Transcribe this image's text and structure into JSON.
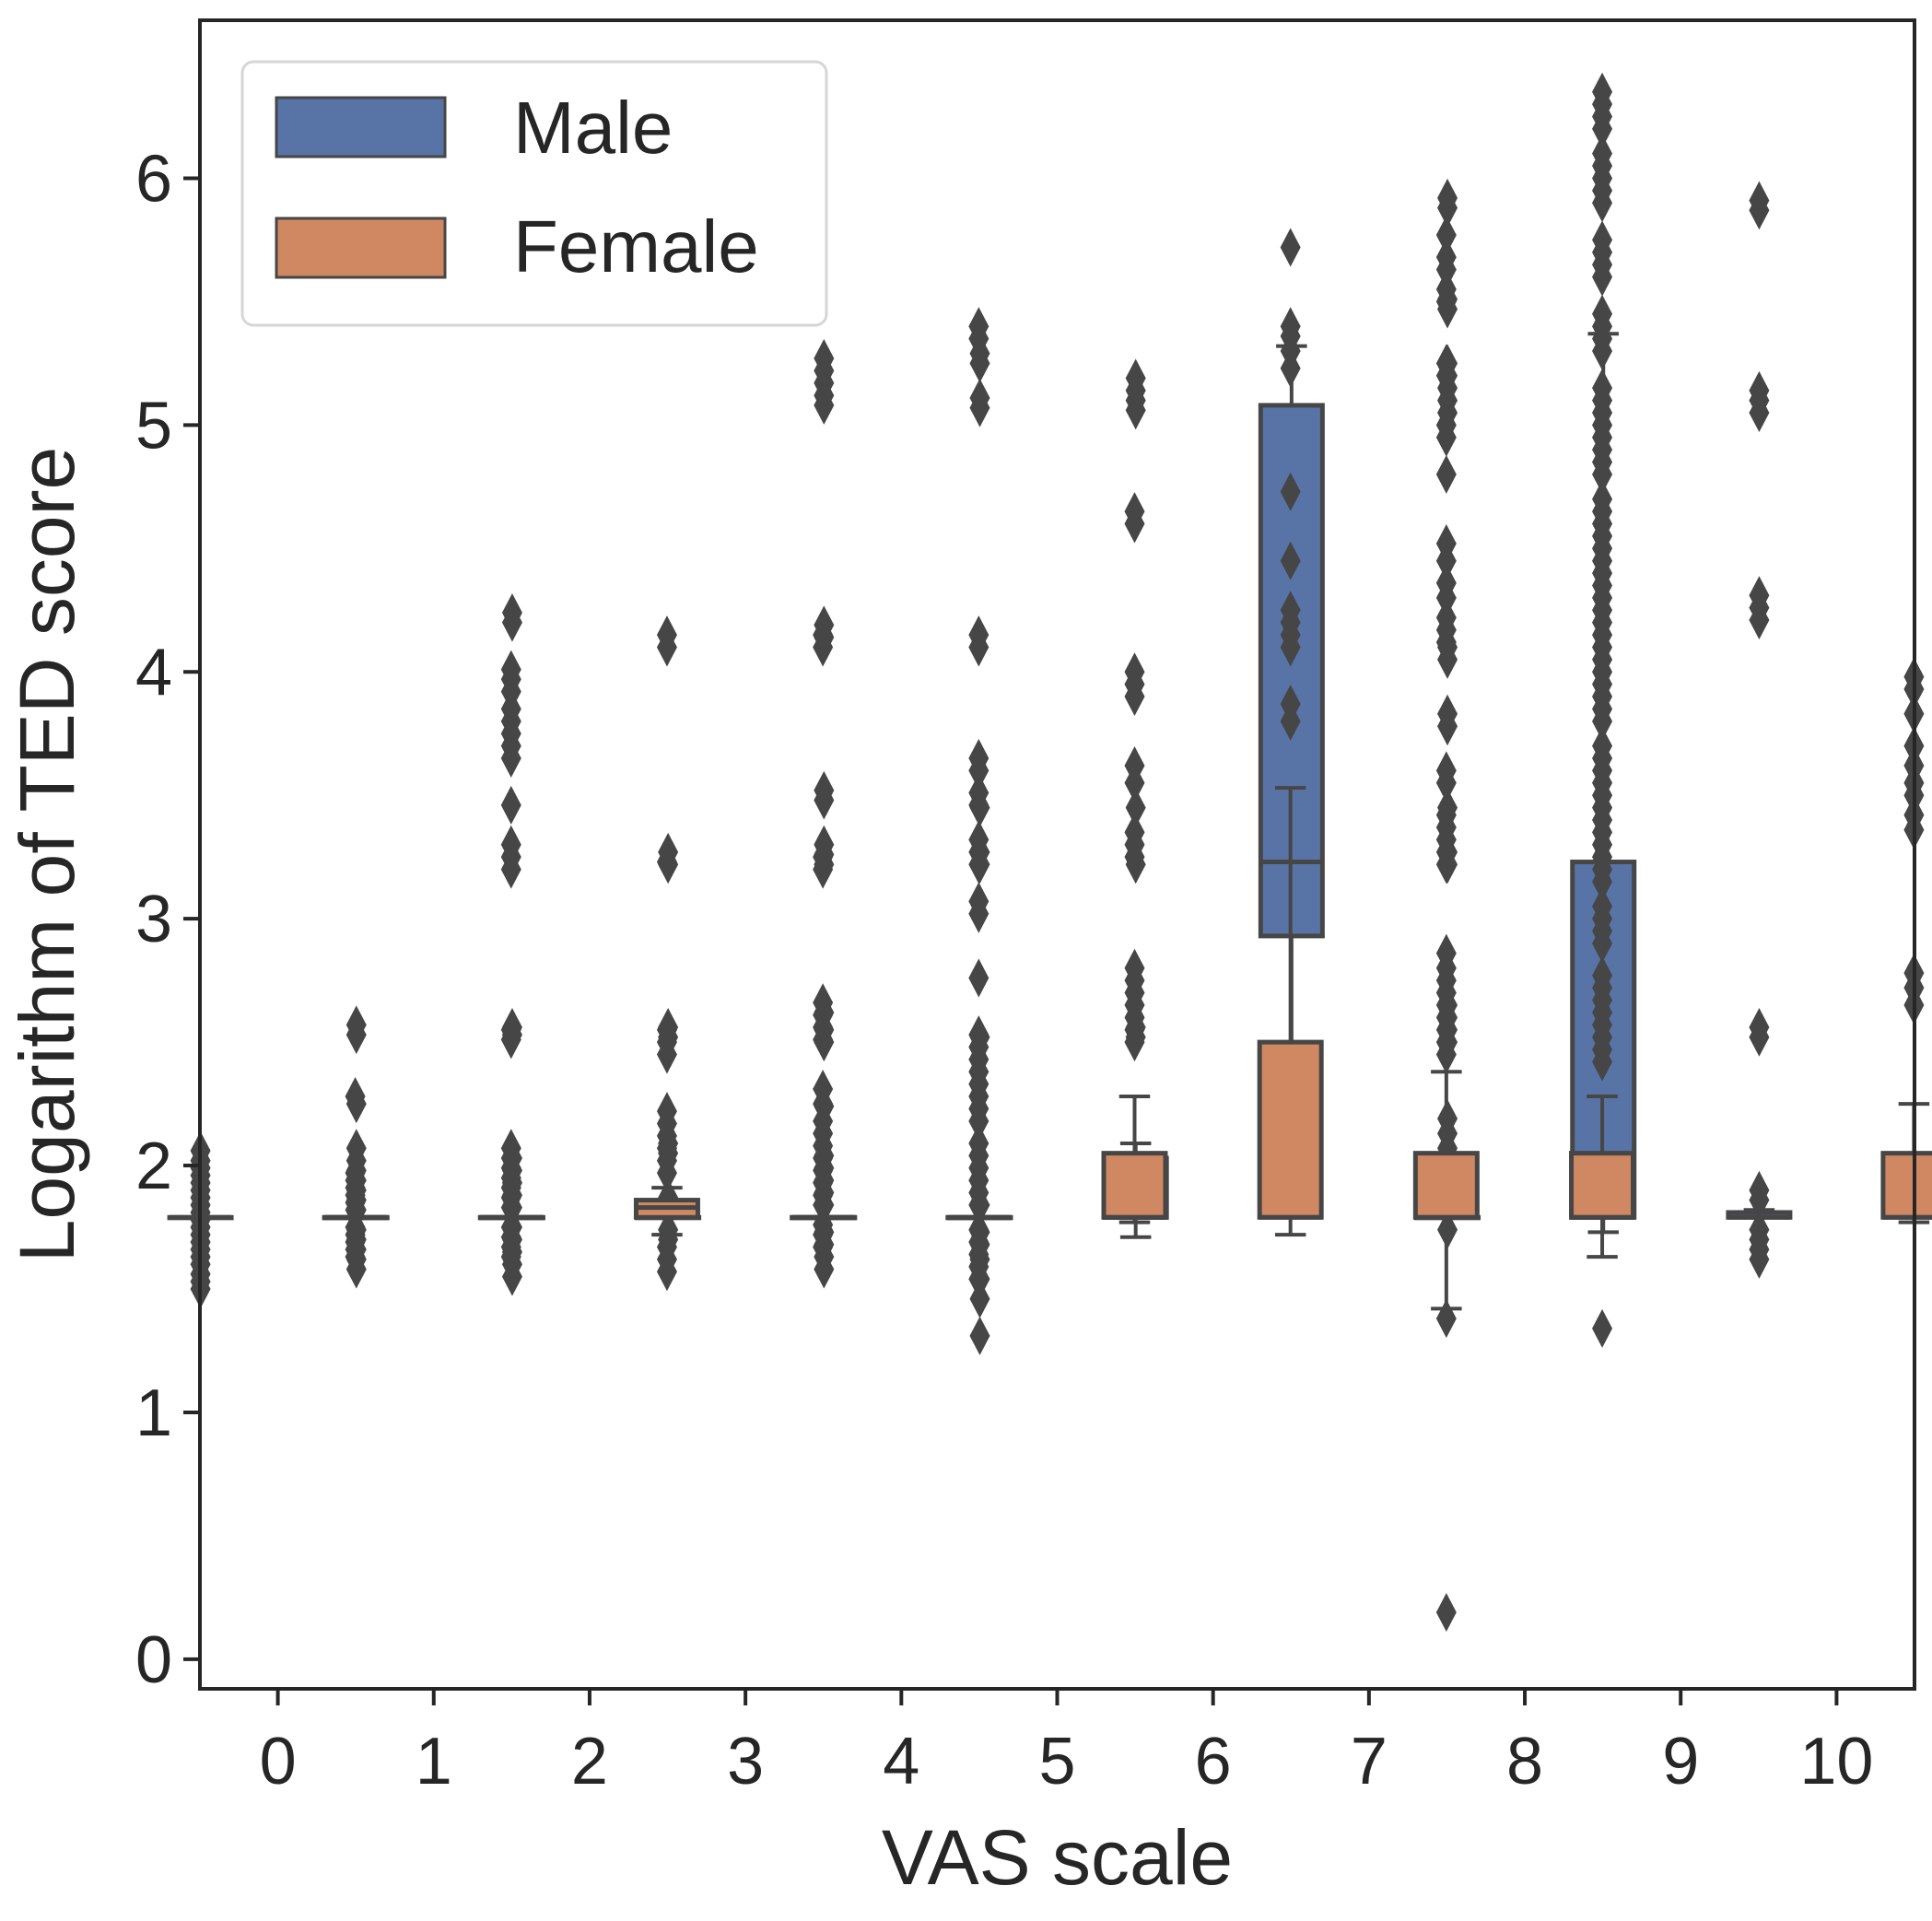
{
  "chart_data": {
    "type": "boxplot",
    "xlabel": "VAS scale",
    "ylabel": "Logarithm of TED score",
    "categories": [
      "0",
      "1",
      "2",
      "3",
      "4",
      "5",
      "6",
      "7",
      "8",
      "9",
      "10"
    ],
    "y_ticks": [
      "0",
      "1",
      "2",
      "3",
      "4",
      "5",
      "6"
    ],
    "ylim": [
      -0.12,
      6.64
    ],
    "legend": {
      "position": "top-left",
      "entries": [
        "Male",
        "Female"
      ]
    },
    "colors": {
      "Male": "#5874a6",
      "Female": "#cf8862",
      "edge": "#464646",
      "axis": "#262626"
    },
    "series": [
      {
        "name": "Male",
        "boxes": [
          {
            "q1": 1.79,
            "median": 1.79,
            "q3": 1.79,
            "wlo": 1.79,
            "whi": 1.79,
            "fliers": [
              1.5,
              1.53,
              1.56,
              1.6,
              1.63,
              1.66,
              1.69,
              1.72,
              1.75,
              1.78,
              1.81,
              1.84,
              1.87,
              1.9,
              1.93,
              1.96,
              1.99,
              2.02,
              2.06
            ]
          },
          {
            "q1": 1.79,
            "median": 1.79,
            "q3": 1.79,
            "wlo": 1.79,
            "whi": 1.79,
            "fliers": [
              1.58,
              1.62,
              1.66,
              1.7,
              1.74,
              1.82,
              1.86,
              1.9,
              1.94,
              1.98,
              2.02,
              2.07,
              2.25,
              2.53,
              2.57
            ]
          },
          {
            "q1": 1.79,
            "median": 1.79,
            "q3": 1.79,
            "wlo": 1.79,
            "whi": 1.79,
            "fliers": [
              1.55,
              1.6,
              1.65,
              1.7,
              1.75,
              1.83,
              1.88,
              1.93,
              1.98,
              2.03,
              2.53,
              2.56,
              4.2,
              4.24
            ]
          },
          {
            "q1": 1.79,
            "median": 1.79,
            "q3": 1.79,
            "wlo": 1.79,
            "whi": 1.79,
            "fliers": [
              1.7,
              1.74,
              1.84,
              1.87,
              2.05,
              2.09,
              2.52,
              2.56,
              3.22,
              3.27
            ]
          },
          {
            "q1": 1.79,
            "median": 1.79,
            "q3": 1.79,
            "wlo": 1.79,
            "whi": 1.79,
            "fliers": [
              1.58,
              1.63,
              1.68,
              1.73,
              1.84,
              1.89,
              1.94,
              1.99,
              2.04,
              2.24,
              2.5,
              2.55,
              2.62,
              3.22,
              3.26,
              3.3,
              3.48,
              3.52,
              4.14,
              4.19,
              5.08,
              5.12,
              5.17,
              5.22,
              5.27
            ]
          },
          {
            "q1": 1.79,
            "median": 1.79,
            "q3": 1.79,
            "wlo": 1.79,
            "whi": 1.79,
            "fliers": [
              1.31,
              1.46,
              1.54,
              1.62,
              1.68,
              1.73,
              1.84,
              2.52,
              3.22,
              3.27,
              3.45,
              5.07,
              5.11,
              5.25,
              5.29
            ]
          },
          {
            "q1": 1.79,
            "median": 1.79,
            "q3": 2.03,
            "wlo": 1.71,
            "whi": 2.09,
            "fliers": [
              2.52,
              2.56,
              3.22,
              3.45,
              5.06,
              5.1,
              5.14,
              5.19
            ]
          },
          {
            "q1": 2.93,
            "median": 3.23,
            "q3": 5.08,
            "wlo": 2.5,
            "whi": 5.32,
            "fliers": []
          },
          {
            "q1": 1.79,
            "median": 1.79,
            "q3": 1.79,
            "wlo": 1.79,
            "whi": 1.79,
            "fliers": [
              1.74,
              1.84,
              1.9,
              1.95,
              2.01,
              2.07,
              2.13,
              2.19,
              2.5,
              2.55,
              2.6,
              2.65,
              3.22,
              3.27,
              3.45,
              3.78,
              3.83,
              4.05,
              4.1,
              5.05,
              5.1,
              5.15,
              5.2,
              5.25,
              5.47,
              5.51,
              5.88,
              5.92
            ]
          },
          {
            "q1": 1.79,
            "median": 1.79,
            "q3": 3.23,
            "wlo": 1.73,
            "whi": 5.37,
            "fliers": []
          },
          {
            "q1": 1.79,
            "median": 1.79,
            "q3": 1.81,
            "wlo": 1.79,
            "whi": 1.82,
            "fliers": [
              1.62,
              1.66,
              1.7,
              1.74,
              1.86,
              1.9,
              2.52,
              2.56,
              4.21,
              4.26,
              4.31,
              5.05,
              5.1,
              5.14,
              5.87,
              5.91
            ]
          }
        ]
      },
      {
        "name": "Female",
        "boxes": [
          {
            "q1": 1.79,
            "median": 1.79,
            "q3": 1.79,
            "wlo": 1.79,
            "whi": 1.79,
            "fliers": [
              1.63,
              1.66,
              1.69,
              1.72,
              1.75,
              1.82,
              1.85,
              1.88,
              1.91,
              1.94,
              1.97,
              2.28
            ]
          },
          {
            "q1": 1.79,
            "median": 1.79,
            "q3": 1.79,
            "wlo": 1.79,
            "whi": 1.79,
            "fliers": [
              1.63,
              1.67,
              1.71,
              1.75,
              1.83,
              1.87,
              1.91,
              1.95,
              1.99,
              2.03,
              2.07,
              2.51,
              2.55,
              3.2,
              3.25,
              3.3,
              3.46,
              3.65,
              3.7,
              3.75,
              3.8,
              3.85,
              3.92,
              3.97,
              4.01
            ]
          },
          {
            "q1": 1.79,
            "median": 1.83,
            "q3": 1.86,
            "wlo": 1.72,
            "whi": 1.91,
            "fliers": [
              1.57,
              1.62,
              1.67,
              1.97,
              2.02,
              2.07,
              2.12,
              2.17,
              2.22,
              2.45,
              2.5,
              2.55,
              3.23,
              4.1,
              4.15
            ]
          },
          {
            "q1": 1.79,
            "median": 1.79,
            "q3": 1.79,
            "wlo": 1.79,
            "whi": 1.79,
            "fliers": [
              1.67,
              1.72,
              1.76,
              1.84,
              1.88,
              1.93,
              1.98,
              2.03,
              2.08,
              2.13,
              2.18,
              2.25,
              2.31,
              2.51,
              2.56,
              2.61,
              2.66,
              3.2,
              3.25,
              4.1,
              4.15
            ]
          },
          {
            "q1": 1.79,
            "median": 1.79,
            "q3": 1.79,
            "wlo": 1.79,
            "whi": 1.79,
            "fliers": [
              1.54,
              1.59,
              1.64,
              1.69,
              1.74,
              1.84,
              1.89,
              1.94,
              1.99,
              2.04,
              2.09,
              2.18,
              2.23,
              2.28,
              2.33,
              2.38,
              2.43,
              2.48,
              2.53,
              2.76,
              3.02,
              3.07,
              3.22,
              3.27,
              3.32,
              3.46,
              3.51,
              3.6,
              3.65,
              4.1,
              4.15,
              5.35,
              5.4
            ]
          },
          {
            "q1": 1.79,
            "median": 1.79,
            "q3": 2.05,
            "wlo": 1.77,
            "whi": 2.28,
            "fliers": [
              2.5,
              2.55,
              2.6,
              2.65,
              2.7,
              2.75,
              2.8,
              3.25,
              3.3,
              3.35,
              3.55,
              3.62,
              3.9,
              3.95,
              4.0,
              4.6,
              4.65
            ]
          },
          {
            "q1": 1.79,
            "median": 1.79,
            "q3": 2.5,
            "wlo": 1.72,
            "whi": 3.53,
            "fliers": [
              3.8,
              3.87,
              4.1,
              4.15,
              4.2,
              4.25,
              4.45,
              4.73,
              5.23,
              5.3,
              5.36,
              5.4,
              5.72
            ]
          },
          {
            "q1": 1.79,
            "median": 1.79,
            "q3": 2.05,
            "wlo": 1.42,
            "whi": 2.38,
            "fliers": [
              0.19,
              1.38,
              2.45,
              2.5,
              2.55,
              2.6,
              2.65,
              2.7,
              2.75,
              2.8,
              2.86,
              3.22,
              3.27,
              3.32,
              3.37,
              3.42,
              3.55,
              3.6,
              4.12,
              4.17,
              4.22,
              4.3,
              4.36,
              4.45,
              4.52,
              4.8,
              4.95,
              5.0,
              5.2,
              5.25,
              5.5,
              5.55,
              5.63,
              5.68,
              5.77
            ]
          },
          {
            "q1": 1.79,
            "median": 1.79,
            "q3": 2.05,
            "wlo": 1.63,
            "whi": 2.28,
            "fliers": [
              1.34,
              2.42,
              2.47,
              2.52,
              2.57,
              2.62,
              2.67,
              2.72,
              2.77,
              2.9,
              2.95,
              3.0,
              3.05,
              3.15,
              3.2,
              3.25,
              3.3,
              3.35,
              3.4,
              3.45,
              3.5,
              3.55,
              3.6,
              3.65,
              3.7,
              3.8,
              3.85,
              3.9,
              3.95,
              4.0,
              4.05,
              4.1,
              4.15,
              4.2,
              4.25,
              4.3,
              4.35,
              4.4,
              4.45,
              4.5,
              4.55,
              4.6,
              4.65,
              4.7,
              4.8,
              4.85,
              4.9,
              4.95,
              5.0,
              5.05,
              5.1,
              5.15,
              5.3,
              5.35,
              5.4,
              5.45,
              5.6,
              5.65,
              5.7,
              5.75,
              5.9,
              5.95,
              6.0,
              6.05,
              6.1,
              6.2,
              6.25,
              6.3,
              6.35
            ]
          },
          {
            "q1": null,
            "median": null,
            "q3": null,
            "wlo": null,
            "whi": null,
            "fliers": []
          },
          {
            "q1": 1.79,
            "median": 1.79,
            "q3": 2.05,
            "wlo": 1.77,
            "whi": 2.25,
            "fliers": [
              2.65,
              2.72,
              2.78,
              3.36,
              3.42,
              3.5,
              3.55,
              3.62,
              3.7,
              3.83,
              3.93,
              3.98
            ]
          }
        ]
      }
    ]
  }
}
